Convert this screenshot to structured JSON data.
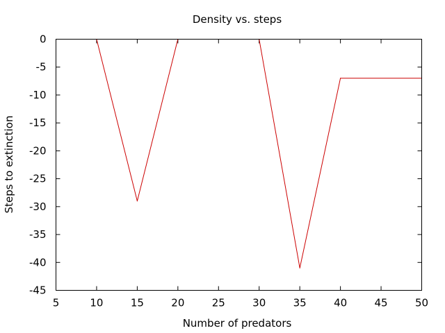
{
  "chart_data": {
    "type": "line",
    "title": "Density vs. steps",
    "xlabel": "Number of predators",
    "ylabel": "Steps to extinction",
    "xlim": [
      5,
      50
    ],
    "ylim": [
      -45,
      0
    ],
    "xticks": [
      5,
      10,
      15,
      20,
      25,
      30,
      35,
      40,
      45,
      50
    ],
    "yticks": [
      0,
      -5,
      -10,
      -15,
      -20,
      -25,
      -30,
      -35,
      -40,
      -45
    ],
    "grid": false,
    "series": [
      {
        "color": "#cc0000",
        "x": [
          10,
          15,
          20,
          30,
          35,
          40,
          50
        ],
        "y": [
          0,
          -29,
          0,
          0,
          -41,
          -7,
          -7
        ]
      }
    ]
  }
}
